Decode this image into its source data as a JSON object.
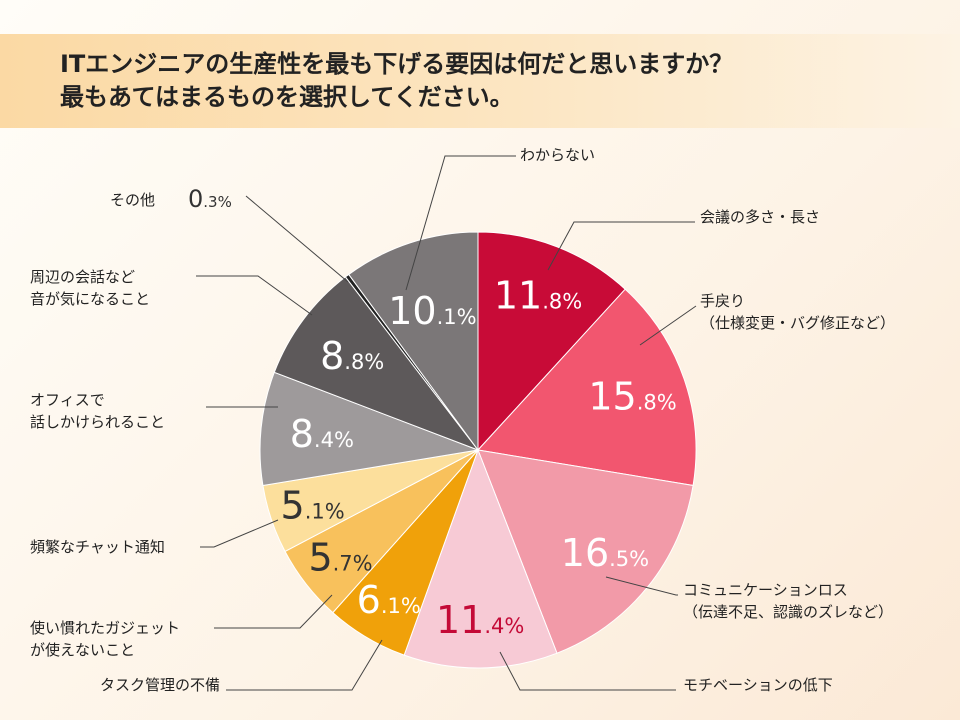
{
  "title": {
    "line1": "ITエンジニアの生産性を最も下げる要因は何だと思いますか？",
    "line2": "最もあてはまるものを選択してください。"
  },
  "chart_data": {
    "type": "pie",
    "unit": "%",
    "slices": [
      {
        "name": "会議の多さ・長さ",
        "value": 11.8,
        "color": "#c80b37",
        "int": "11",
        "dec": ".8",
        "text_color": "white"
      },
      {
        "name": "手戻り\n（仕様変更・バグ修正など）",
        "value": 15.8,
        "color": "#f2566f",
        "int": "15",
        "dec": ".8",
        "text_color": "white"
      },
      {
        "name": "コミュニケーションロス\n（伝達不足、認識のズレなど）",
        "value": 16.5,
        "color": "#f29aa8",
        "int": "16",
        "dec": ".5",
        "text_color": "white"
      },
      {
        "name": "モチベーションの低下",
        "value": 11.4,
        "color": "#f7cad5",
        "int": "11",
        "dec": ".4",
        "text_color": "red"
      },
      {
        "name": "タスク管理の不備",
        "value": 6.1,
        "color": "#f0a10a",
        "int": "6",
        "dec": ".1",
        "text_color": "white"
      },
      {
        "name": "使い慣れたガジェット\nが使えないこと",
        "value": 5.7,
        "color": "#f8c15c",
        "int": "5",
        "dec": ".7",
        "text_color": "dark"
      },
      {
        "name": "頻繁なチャット通知",
        "value": 5.1,
        "color": "#fcdf9c",
        "int": "5",
        "dec": ".1",
        "text_color": "dark"
      },
      {
        "name": "オフィスで\n話しかけられること",
        "value": 8.4,
        "color": "#9e9a9b",
        "int": "8",
        "dec": ".4",
        "text_color": "white"
      },
      {
        "name": "周辺の会話など\n音が気になること",
        "value": 8.8,
        "color": "#5d595a",
        "int": "8",
        "dec": ".8",
        "text_color": "white"
      },
      {
        "name": "その他",
        "value": 0.3,
        "color": "#222222",
        "int": "0",
        "dec": ".3",
        "text_color": "dark"
      },
      {
        "name": "わからない",
        "value": 10.1,
        "color": "#7b7778",
        "int": "10",
        "dec": ".1",
        "text_color": "white"
      }
    ]
  }
}
